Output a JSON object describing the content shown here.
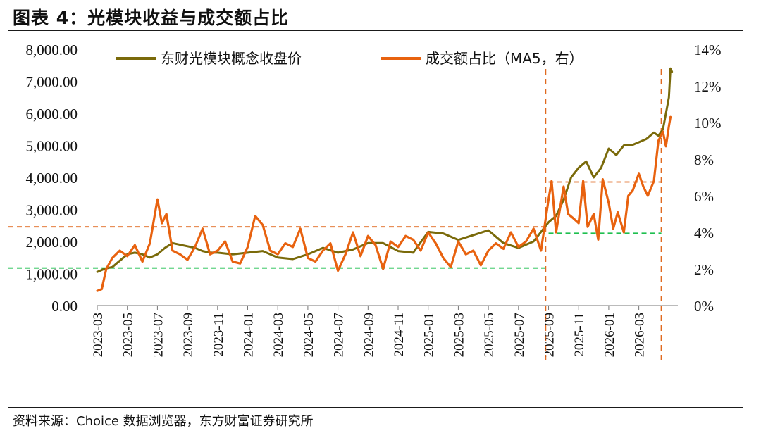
{
  "header": {
    "title": "图表 4：光模块收益与成交额占比"
  },
  "footer": {
    "source": "资料来源：Choice 数据浏览器，东方财富证券研究所"
  },
  "colors": {
    "price": "#7a6a0a",
    "ratio": "#e8620f",
    "ref_orange": "#e06a20",
    "ref_green": "#1fbf4f"
  },
  "chart_data": {
    "type": "line",
    "title": "光模块收益与成交额占比",
    "legend": [
      "东财光模块概念收盘价",
      "成交额占比（MA5，右）"
    ],
    "legend_position": "top",
    "x_tick_labels": [
      "2023-03",
      "2023-05",
      "2023-07",
      "2023-09",
      "2023-11",
      "2024-01",
      "2024-03",
      "2024-05",
      "2024-07",
      "2024-09",
      "2024-11",
      "2025-01",
      "2025-03",
      "2025-05",
      "2025-07",
      "2025-09",
      "2025-11",
      "2026-01",
      "2026-03"
    ],
    "x_range_months": [
      0,
      38.5
    ],
    "y_left": {
      "range": [
        0,
        8000
      ],
      "ticks": [
        "0.00",
        "1,000.00",
        "2,000.00",
        "3,000.00",
        "4,000.00",
        "5,000.00",
        "6,000.00",
        "7,000.00",
        "8,000.00"
      ]
    },
    "y_right": {
      "range": [
        0,
        14
      ],
      "ticks": [
        "0%",
        "2%",
        "4%",
        "6%",
        "8%",
        "10%",
        "12%",
        "14%"
      ]
    },
    "series": [
      {
        "name": "东财光模块概念收盘价",
        "axis": "left",
        "x_months": [
          0,
          0.5,
          1,
          1.5,
          2,
          2.5,
          3,
          3.5,
          4,
          4.5,
          5,
          5.5,
          6,
          6.5,
          7,
          7.5,
          8,
          9,
          10,
          11,
          12,
          13,
          14,
          15,
          16,
          17,
          18,
          19,
          20,
          21,
          22,
          23,
          24,
          25,
          26,
          27,
          28,
          29,
          29.5,
          30,
          30.5,
          31,
          31.5,
          32,
          32.5,
          33,
          33.5,
          34,
          34.5,
          35,
          35.5,
          36,
          36.5,
          37,
          37.3,
          37.6,
          37.8,
          38,
          38.1,
          38.2
        ],
        "values": [
          1050,
          1150,
          1200,
          1400,
          1600,
          1650,
          1600,
          1500,
          1600,
          1800,
          1950,
          1900,
          1850,
          1800,
          1700,
          1650,
          1650,
          1600,
          1650,
          1700,
          1500,
          1450,
          1600,
          1800,
          1650,
          1750,
          1950,
          1950,
          1700,
          1650,
          2300,
          2250,
          2050,
          2200,
          2350,
          1950,
          1800,
          2000,
          2300,
          2600,
          2800,
          3300,
          4000,
          4300,
          4500,
          4000,
          4300,
          4900,
          4700,
          5000,
          5000,
          5100,
          5200,
          5400,
          5300,
          5500,
          6000,
          6500,
          7400,
          7300
        ]
      },
      {
        "name": "成交额占比（MA5，右）",
        "axis": "right",
        "x_months": [
          0,
          0.3,
          0.6,
          1,
          1.5,
          2,
          2.5,
          3,
          3.5,
          4,
          4.3,
          4.6,
          5,
          5.5,
          6,
          6.5,
          7,
          7.5,
          8,
          8.5,
          9,
          9.5,
          10,
          10.5,
          11,
          11.5,
          12,
          12.5,
          13,
          13.5,
          14,
          14.5,
          15,
          15.5,
          16,
          16.5,
          17,
          17.5,
          18,
          18.5,
          19,
          19.5,
          20,
          20.5,
          21,
          21.5,
          22,
          22.5,
          23,
          23.5,
          24,
          24.5,
          25,
          25.5,
          26,
          26.5,
          27,
          27.5,
          28,
          28.5,
          29,
          29.5,
          30,
          30.2,
          30.5,
          31,
          31.3,
          31.6,
          32,
          32.3,
          32.6,
          33,
          33.3,
          33.6,
          34,
          34.3,
          34.6,
          35,
          35.3,
          35.6,
          36,
          36.3,
          36.6,
          37,
          37.3,
          37.6,
          37.8,
          38,
          38.1
        ],
        "values": [
          0.8,
          0.9,
          2.0,
          2.6,
          3.0,
          2.7,
          3.3,
          2.4,
          3.4,
          5.8,
          4.5,
          5.0,
          3.0,
          2.8,
          2.5,
          3.2,
          4.2,
          2.8,
          3.0,
          3.5,
          2.4,
          2.3,
          3.2,
          4.9,
          4.4,
          3.0,
          2.8,
          3.4,
          3.2,
          4.2,
          2.6,
          2.4,
          3.0,
          3.4,
          1.9,
          2.8,
          4.0,
          2.7,
          3.8,
          3.3,
          2.0,
          3.5,
          3.2,
          3.8,
          3.6,
          3.0,
          4.0,
          3.4,
          2.6,
          2.1,
          3.5,
          2.8,
          3.0,
          2.2,
          3.0,
          3.4,
          3.1,
          4.0,
          3.2,
          3.5,
          4.2,
          3.0,
          5.8,
          6.8,
          4.0,
          6.5,
          5.0,
          4.8,
          4.5,
          6.8,
          4.3,
          5.0,
          3.6,
          6.9,
          5.6,
          4.2,
          5.1,
          4.0,
          6.0,
          6.3,
          7.2,
          6.5,
          6.0,
          6.8,
          9.0,
          9.5,
          8.7,
          9.8,
          10.3
        ]
      }
    ],
    "reference_lines": [
      {
        "orientation": "horizontal",
        "axis": "right",
        "value": 4.3,
        "x_from_month": 0,
        "x_to_month": 30,
        "color": "orange"
      },
      {
        "orientation": "horizontal",
        "axis": "right",
        "value": 2.05,
        "x_from_month": 0,
        "x_to_month": 30,
        "color": "green"
      },
      {
        "orientation": "horizontal",
        "axis": "right",
        "value": 6.75,
        "x_from_month": 30,
        "x_to_month": 37.5,
        "color": "orange"
      },
      {
        "orientation": "horizontal",
        "axis": "right",
        "value": 3.95,
        "x_from_month": 30,
        "x_to_month": 37.5,
        "color": "green"
      },
      {
        "orientation": "vertical",
        "x_month": 29.8,
        "color": "orange"
      },
      {
        "orientation": "vertical",
        "x_month": 37.5,
        "color": "orange"
      }
    ]
  }
}
